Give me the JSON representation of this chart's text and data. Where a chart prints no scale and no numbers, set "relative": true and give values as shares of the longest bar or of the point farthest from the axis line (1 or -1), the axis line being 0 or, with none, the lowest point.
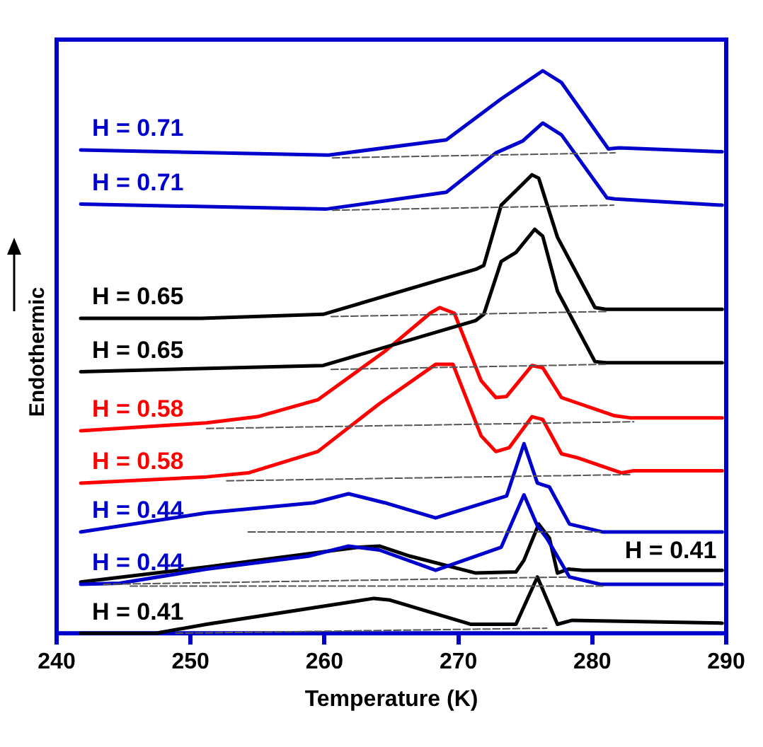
{
  "chart_data": {
    "type": "line",
    "relative": true,
    "xlabel": "Temperature (K)",
    "ylabel": "Endothermic",
    "xlim": [
      240,
      290
    ],
    "xticks": [
      240,
      250,
      260,
      270,
      280,
      290
    ],
    "grid": false,
    "legend": false,
    "marker": "none",
    "series": [
      {
        "name": "H = 0.71",
        "color": "#0000cc",
        "x": [
          241.8,
          260.3,
          269.1,
          273.2,
          276.3,
          277.7,
          281.2,
          282.0,
          289.7
        ],
        "values": [
          0.859,
          0.85,
          0.877,
          0.95,
          1,
          0.979,
          0.861,
          0.863,
          0.856
        ]
      },
      {
        "color": "#555555",
        "line_style": "dashed",
        "x": [
          260.6,
          281.7
        ],
        "values": [
          0.845,
          0.854
        ]
      },
      {
        "name": "H = 0.71",
        "color": "#0000cc",
        "x": [
          241.8,
          260.1,
          269.1,
          272.8,
          274.8,
          276.3,
          277.7,
          281.1,
          281.7,
          289.7
        ],
        "values": [
          0.763,
          0.754,
          0.784,
          0.854,
          0.875,
          0.907,
          0.886,
          0.774,
          0.772,
          0.761
        ]
      },
      {
        "color": "#555555",
        "line_style": "dashed",
        "x": [
          260.6,
          281.6
        ],
        "values": [
          0.752,
          0.761
        ]
      },
      {
        "name": "H = 0.65",
        "color": "#000000",
        "x": [
          241.8,
          250.8,
          259.9,
          271.3,
          271.9,
          273.2,
          275.5,
          276.0,
          277.4,
          280.2,
          281.0,
          289.7
        ],
        "values": [
          0.56,
          0.56,
          0.567,
          0.647,
          0.654,
          0.761,
          0.815,
          0.809,
          0.704,
          0.579,
          0.576,
          0.576
        ]
      },
      {
        "color": "#555555",
        "line_style": "dashed",
        "x": [
          260.5,
          281.2
        ],
        "values": [
          0.563,
          0.572
        ]
      },
      {
        "name": "H = 0.65",
        "color": "#000000",
        "x": [
          241.8,
          259.9,
          271.3,
          271.9,
          273.2,
          274.3,
          275.7,
          276.3,
          277.4,
          280.2,
          281.0,
          289.7
        ],
        "values": [
          0.465,
          0.476,
          0.556,
          0.567,
          0.661,
          0.677,
          0.718,
          0.706,
          0.608,
          0.483,
          0.481,
          0.481
        ]
      },
      {
        "color": "#555555",
        "line_style": "dashed",
        "x": [
          260.5,
          281.0
        ],
        "values": [
          0.469,
          0.478
        ]
      },
      {
        "name": "H = 0.58",
        "color": "#ff0000",
        "x": [
          241.8,
          251.2,
          255.0,
          259.5,
          264.5,
          267.9,
          268.6,
          269.7,
          271.7,
          272.8,
          273.6,
          275.5,
          276.3,
          277.7,
          281.6,
          282.8,
          289.7
        ],
        "values": [
          0.36,
          0.374,
          0.385,
          0.415,
          0.501,
          0.569,
          0.579,
          0.569,
          0.449,
          0.419,
          0.421,
          0.476,
          0.472,
          0.419,
          0.387,
          0.383,
          0.383
        ]
      },
      {
        "color": "#555555",
        "line_style": "dashed",
        "x": [
          251.2,
          283.1
        ],
        "values": [
          0.364,
          0.376
        ]
      },
      {
        "name": "H = 0.58",
        "color": "#ff0000",
        "x": [
          241.8,
          251.2,
          254.3,
          259.5,
          264.1,
          268.3,
          269.6,
          271.7,
          272.8,
          273.8,
          275.5,
          276.3,
          277.7,
          278.9,
          282.2,
          283.1,
          289.7
        ],
        "values": [
          0.267,
          0.278,
          0.285,
          0.323,
          0.408,
          0.478,
          0.478,
          0.351,
          0.323,
          0.33,
          0.385,
          0.38,
          0.319,
          0.312,
          0.285,
          0.289,
          0.289
        ]
      },
      {
        "color": "#555555",
        "line_style": "dashed",
        "x": [
          252.7,
          282.8
        ],
        "values": [
          0.271,
          0.282
        ]
      },
      {
        "name": "H = 0.44",
        "color": "#0000cc",
        "x": [
          241.8,
          251.2,
          259.2,
          261.8,
          264.5,
          268.3,
          273.6,
          274.9,
          275.9,
          276.8,
          278.3,
          280.8,
          289.7
        ],
        "values": [
          0.18,
          0.214,
          0.232,
          0.248,
          0.232,
          0.205,
          0.244,
          0.337,
          0.267,
          0.26,
          0.194,
          0.18,
          0.18
        ]
      },
      {
        "color": "#555555",
        "line_style": "dashed",
        "x": [
          254.3,
          280.6
        ],
        "values": [
          0.18,
          0.18
        ]
      },
      {
        "name": "H = 0.44",
        "color": "#0000cc",
        "x": [
          241.8,
          244.7,
          251.2,
          258.8,
          261.8,
          264.1,
          268.3,
          273.2,
          274.9,
          275.9,
          276.6,
          278.3,
          280.6,
          289.7
        ],
        "values": [
          0.087,
          0.089,
          0.114,
          0.137,
          0.155,
          0.148,
          0.112,
          0.153,
          0.246,
          0.191,
          0.169,
          0.1,
          0.087,
          0.087
        ]
      },
      {
        "color": "#555555",
        "line_style": "dashed",
        "x": [
          245.5,
          281.0
        ],
        "values": [
          0.084,
          0.084
        ]
      },
      {
        "name": "H = 0.41",
        "color": "#000000",
        "x": [
          241.8,
          251.2,
          262.6,
          264.1,
          266.4,
          271.3,
          274.3,
          274.9,
          276.0,
          276.8,
          277.4,
          278.2,
          279.3,
          289.7
        ],
        "values": [
          0.091,
          0.118,
          0.153,
          0.155,
          0.137,
          0.107,
          0.109,
          0.13,
          0.194,
          0.169,
          0.107,
          0.114,
          0.112,
          0.112
        ]
      },
      {
        "color": "#555555",
        "line_style": "dashed",
        "x": [
          243.5,
          278.2
        ],
        "values": [
          0.087,
          0.1
        ]
      },
      {
        "name": "H = 0.41",
        "color": "#000000",
        "x": [
          241.8,
          247.4,
          251.2,
          261.8,
          263.7,
          264.9,
          270.9,
          274.3,
          275.9,
          277.4,
          278.5,
          289.7
        ],
        "values": [
          0,
          0,
          0.016,
          0.055,
          0.062,
          0.059,
          0.016,
          0.016,
          0.1,
          0.016,
          0.023,
          0.018
        ]
      },
      {
        "color": "#555555",
        "line_style": "dashed",
        "x": [
          248.9,
          276.6
        ],
        "values": [
          0,
          0.009
        ]
      }
    ]
  }
}
